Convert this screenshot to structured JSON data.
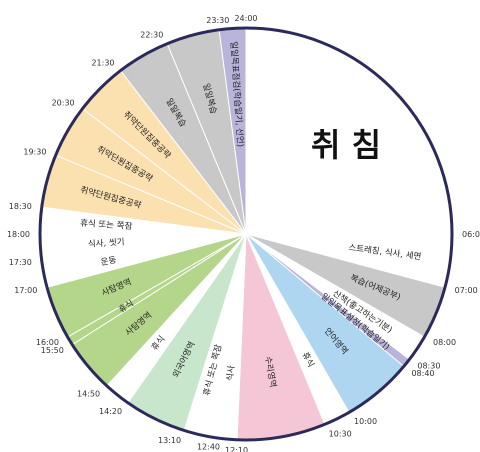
{
  "title": "취 침",
  "chart_data": {
    "type": "pie",
    "unit": "clock-24h",
    "segments": [
      {
        "label": "취 침",
        "start": "00:00",
        "end": "06:00",
        "color": "#ffffff"
      },
      {
        "label": "스트레칭, 식사, 세면",
        "start": "06:00",
        "end": "07:00",
        "color": "#ffffff"
      },
      {
        "label": "복습(어제공부)",
        "start": "07:00",
        "end": "08:00",
        "color": "#c8c8c8"
      },
      {
        "label": "산책(좋고하는기분)",
        "start": "08:00",
        "end": "08:30",
        "color": "#ffffff"
      },
      {
        "label": "일일목표설정(학습일기)",
        "start": "08:30",
        "end": "08:40",
        "color": "#b8b4da"
      },
      {
        "label": "언어영역",
        "start": "08:40",
        "end": "10:00",
        "color": "#aed6f1"
      },
      {
        "label": "휴식",
        "start": "10:00",
        "end": "10:30",
        "color": "#ffffff"
      },
      {
        "label": "수리영역",
        "start": "10:30",
        "end": "12:10",
        "color": "#f4c6d6"
      },
      {
        "label": "식사",
        "start": "12:10",
        "end": "12:40",
        "color": "#ffffff"
      },
      {
        "label": "휴식 또는 쪽잠",
        "start": "12:40",
        "end": "13:10",
        "color": "#ffffff"
      },
      {
        "label": "외국어영역",
        "start": "13:10",
        "end": "14:20",
        "color": "#c8e6cc"
      },
      {
        "label": "휴식",
        "start": "14:20",
        "end": "14:50",
        "color": "#ffffff"
      },
      {
        "label": "사탐영역",
        "start": "14:50",
        "end": "15:50",
        "color": "#b4d68a"
      },
      {
        "label": "휴식",
        "start": "15:50",
        "end": "16:00",
        "color": "#b4d68a"
      },
      {
        "label": "사탐영역",
        "start": "16:00",
        "end": "17:00",
        "color": "#b4d68a"
      },
      {
        "label": "운동",
        "start": "17:00",
        "end": "17:30",
        "color": "#ffffff"
      },
      {
        "label": "식사, 씻기",
        "start": "17:30",
        "end": "18:00",
        "color": "#ffffff"
      },
      {
        "label": "휴식 또는 쪽잠",
        "start": "18:00",
        "end": "18:30",
        "color": "#ffffff"
      },
      {
        "label": "취약단원집중공략",
        "start": "18:30",
        "end": "19:30",
        "color": "#fbe0b0"
      },
      {
        "label": "취약단원집중공략",
        "start": "19:30",
        "end": "20:30",
        "color": "#fbe0b0"
      },
      {
        "label": "취약단원집중공략",
        "start": "20:30",
        "end": "21:30",
        "color": "#fbe0b0"
      },
      {
        "label": "일일복습",
        "start": "21:30",
        "end": "22:30",
        "color": "#c8c8c8"
      },
      {
        "label": "일일복습",
        "start": "22:30",
        "end": "23:30",
        "color": "#c8c8c8"
      },
      {
        "label": "일일목표점검(학습일기, 선언)",
        "start": "23:30",
        "end": "24:00",
        "color": "#b8b4da"
      }
    ],
    "time_labels": [
      "24:00",
      "06:00",
      "07:00",
      "08:00",
      "08:30",
      "08:40",
      "10:00",
      "10:30",
      "12:10",
      "12:40",
      "13:10",
      "14:20",
      "14:50",
      "15:50",
      "16:00",
      "17:00",
      "17:30",
      "18:00",
      "18:30",
      "19:30",
      "20:30",
      "21:30",
      "22:30",
      "23:30"
    ],
    "border_color": "#2b2a5a"
  }
}
